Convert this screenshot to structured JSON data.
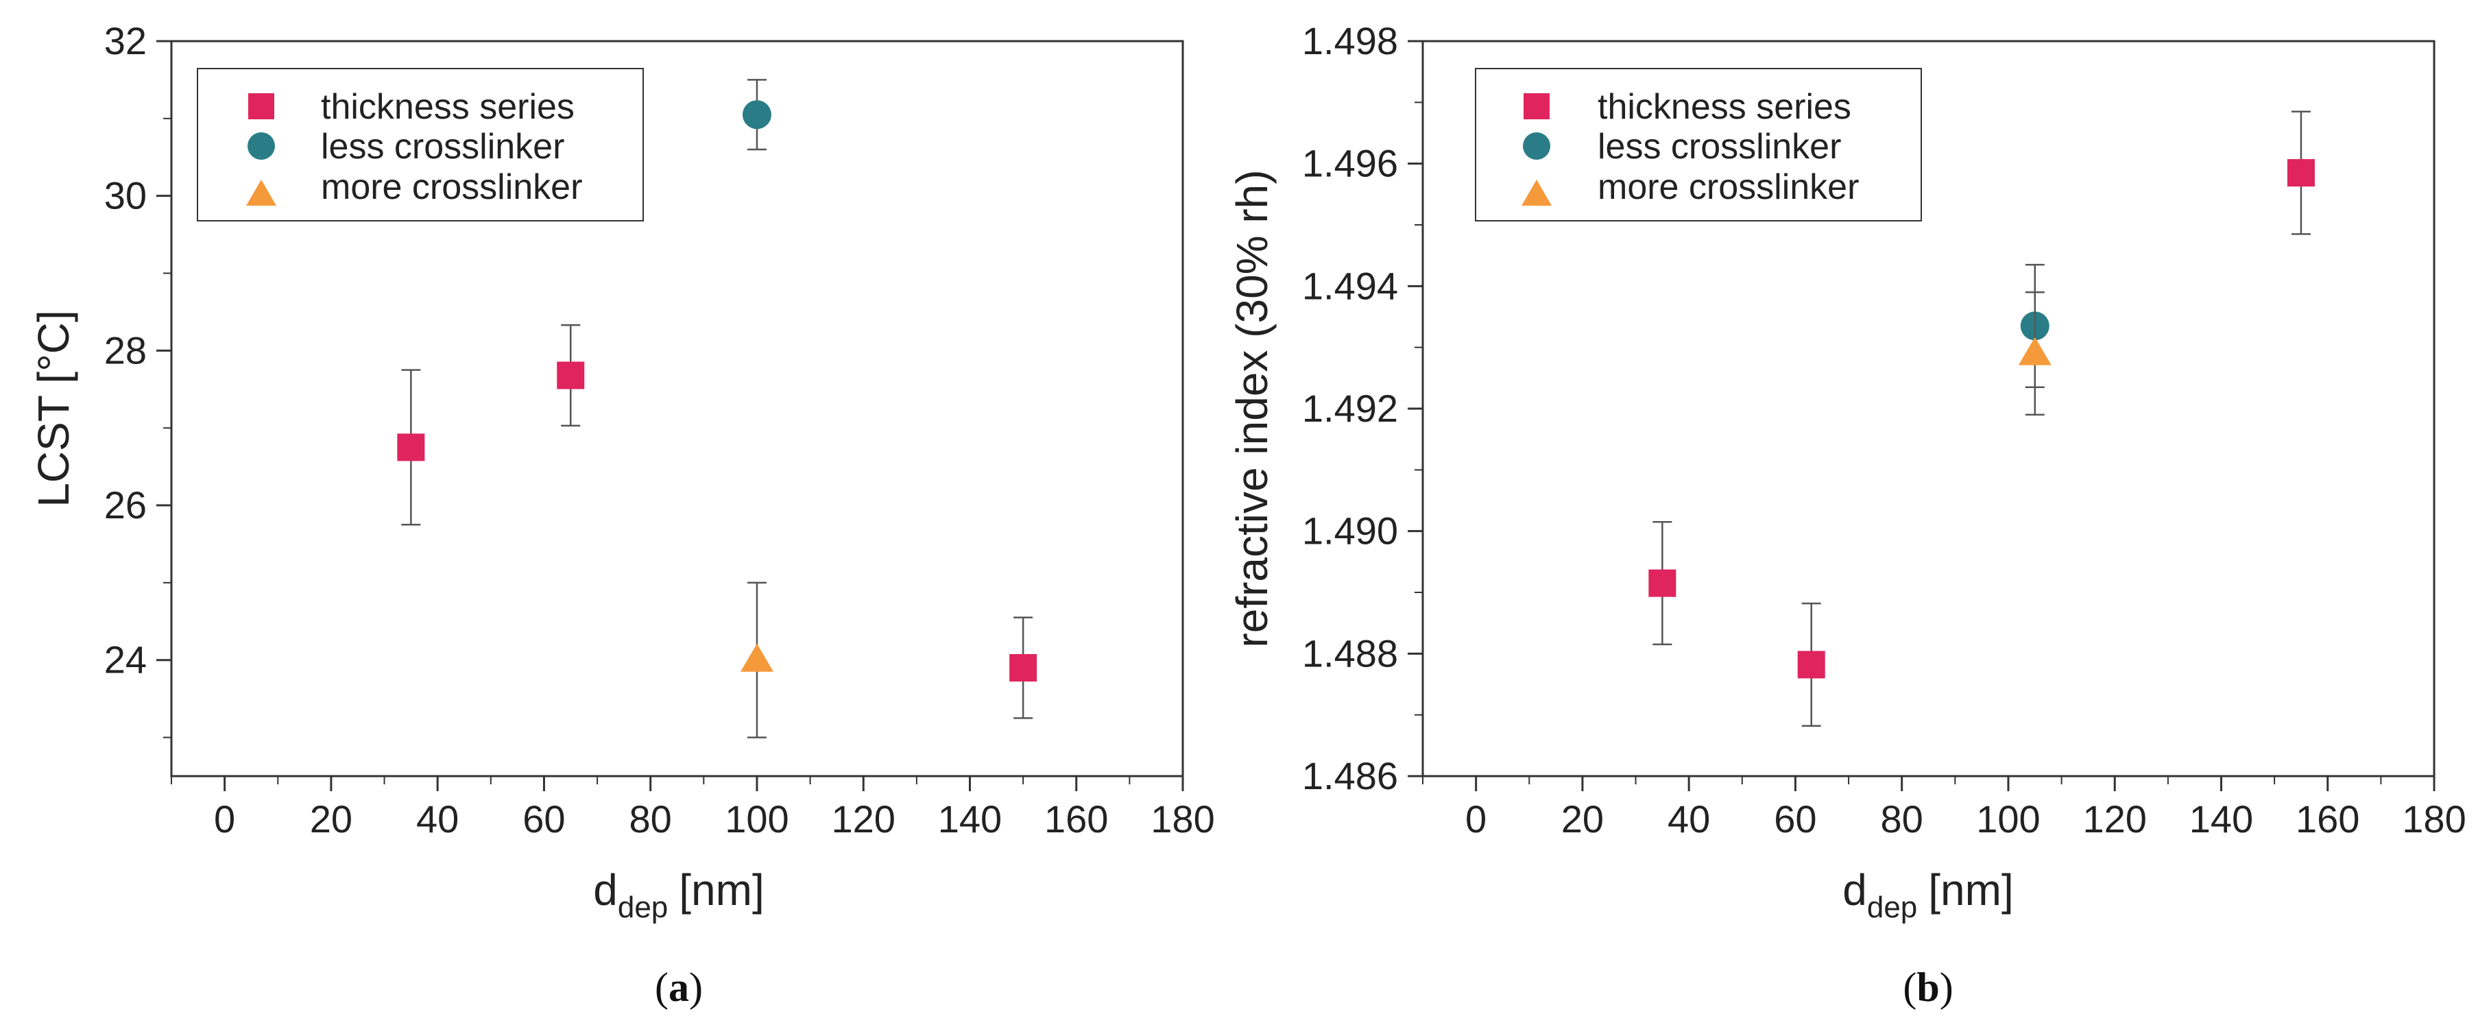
{
  "chart_data": [
    {
      "id": "a",
      "type": "scatter",
      "caption": "(a)",
      "caption_letter": "a",
      "xlabel_main": "d",
      "xlabel_sub": "dep",
      "xlabel_unit": "[nm]",
      "ylabel": "LCST [°C]",
      "xlim": [
        -10,
        180
      ],
      "ylim": [
        22.5,
        32
      ],
      "x_ticks": [
        0,
        20,
        40,
        60,
        80,
        100,
        120,
        140,
        160,
        180
      ],
      "y_ticks": [
        24,
        26,
        28,
        30,
        32
      ],
      "x_tick_labels": [
        "0",
        "20",
        "40",
        "60",
        "80",
        "100",
        "120",
        "140",
        "160",
        "180"
      ],
      "y_tick_labels": [
        "24",
        "26",
        "28",
        "30",
        "32"
      ],
      "legend_position": "top-left",
      "series": [
        {
          "name": "thickness series",
          "marker": "square",
          "color": "#e0245e",
          "points": [
            {
              "x": 35,
              "y": 26.75,
              "err": 1.0
            },
            {
              "x": 65,
              "y": 27.68,
              "err": 0.65
            },
            {
              "x": 150,
              "y": 23.9,
              "err": 0.65
            }
          ]
        },
        {
          "name": "less crosslinker",
          "marker": "circle",
          "color": "#2a7d86",
          "points": [
            {
              "x": 100,
              "y": 31.05,
              "err": 0.45
            }
          ]
        },
        {
          "name": "more crosslinker",
          "marker": "triangle",
          "color": "#f59a3b",
          "points": [
            {
              "x": 100,
              "y": 24.0,
              "err": 1.0
            }
          ]
        }
      ]
    },
    {
      "id": "b",
      "type": "scatter",
      "caption": "(b)",
      "caption_letter": "b",
      "xlabel_main": "d",
      "xlabel_sub": "dep",
      "xlabel_unit": "[nm]",
      "ylabel": "refractive index (30% rh)",
      "xlim": [
        -10,
        180
      ],
      "ylim": [
        1.486,
        1.498
      ],
      "x_ticks": [
        0,
        20,
        40,
        60,
        80,
        100,
        120,
        140,
        160,
        180
      ],
      "y_ticks": [
        1.486,
        1.488,
        1.49,
        1.492,
        1.494,
        1.496,
        1.498
      ],
      "x_tick_labels": [
        "0",
        "20",
        "40",
        "60",
        "80",
        "100",
        "120",
        "140",
        "160",
        "180"
      ],
      "y_tick_labels": [
        "1.486",
        "1.488",
        "1.490",
        "1.492",
        "1.494",
        "1.496",
        "1.498"
      ],
      "legend_position": "top-left",
      "series": [
        {
          "name": "thickness series",
          "marker": "square",
          "color": "#e0245e",
          "points": [
            {
              "x": 35,
              "y": 1.48915,
              "err": 0.001
            },
            {
              "x": 63,
              "y": 1.48782,
              "err": 0.001
            },
            {
              "x": 155,
              "y": 1.49585,
              "err": 0.001
            }
          ]
        },
        {
          "name": "less crosslinker",
          "marker": "circle",
          "color": "#2a7d86",
          "points": [
            {
              "x": 105,
              "y": 1.49335,
              "err": 0.001
            }
          ]
        },
        {
          "name": "more crosslinker",
          "marker": "triangle",
          "color": "#f59a3b",
          "points": [
            {
              "x": 105,
              "y": 1.4929,
              "err": 0.001
            }
          ]
        }
      ]
    }
  ]
}
